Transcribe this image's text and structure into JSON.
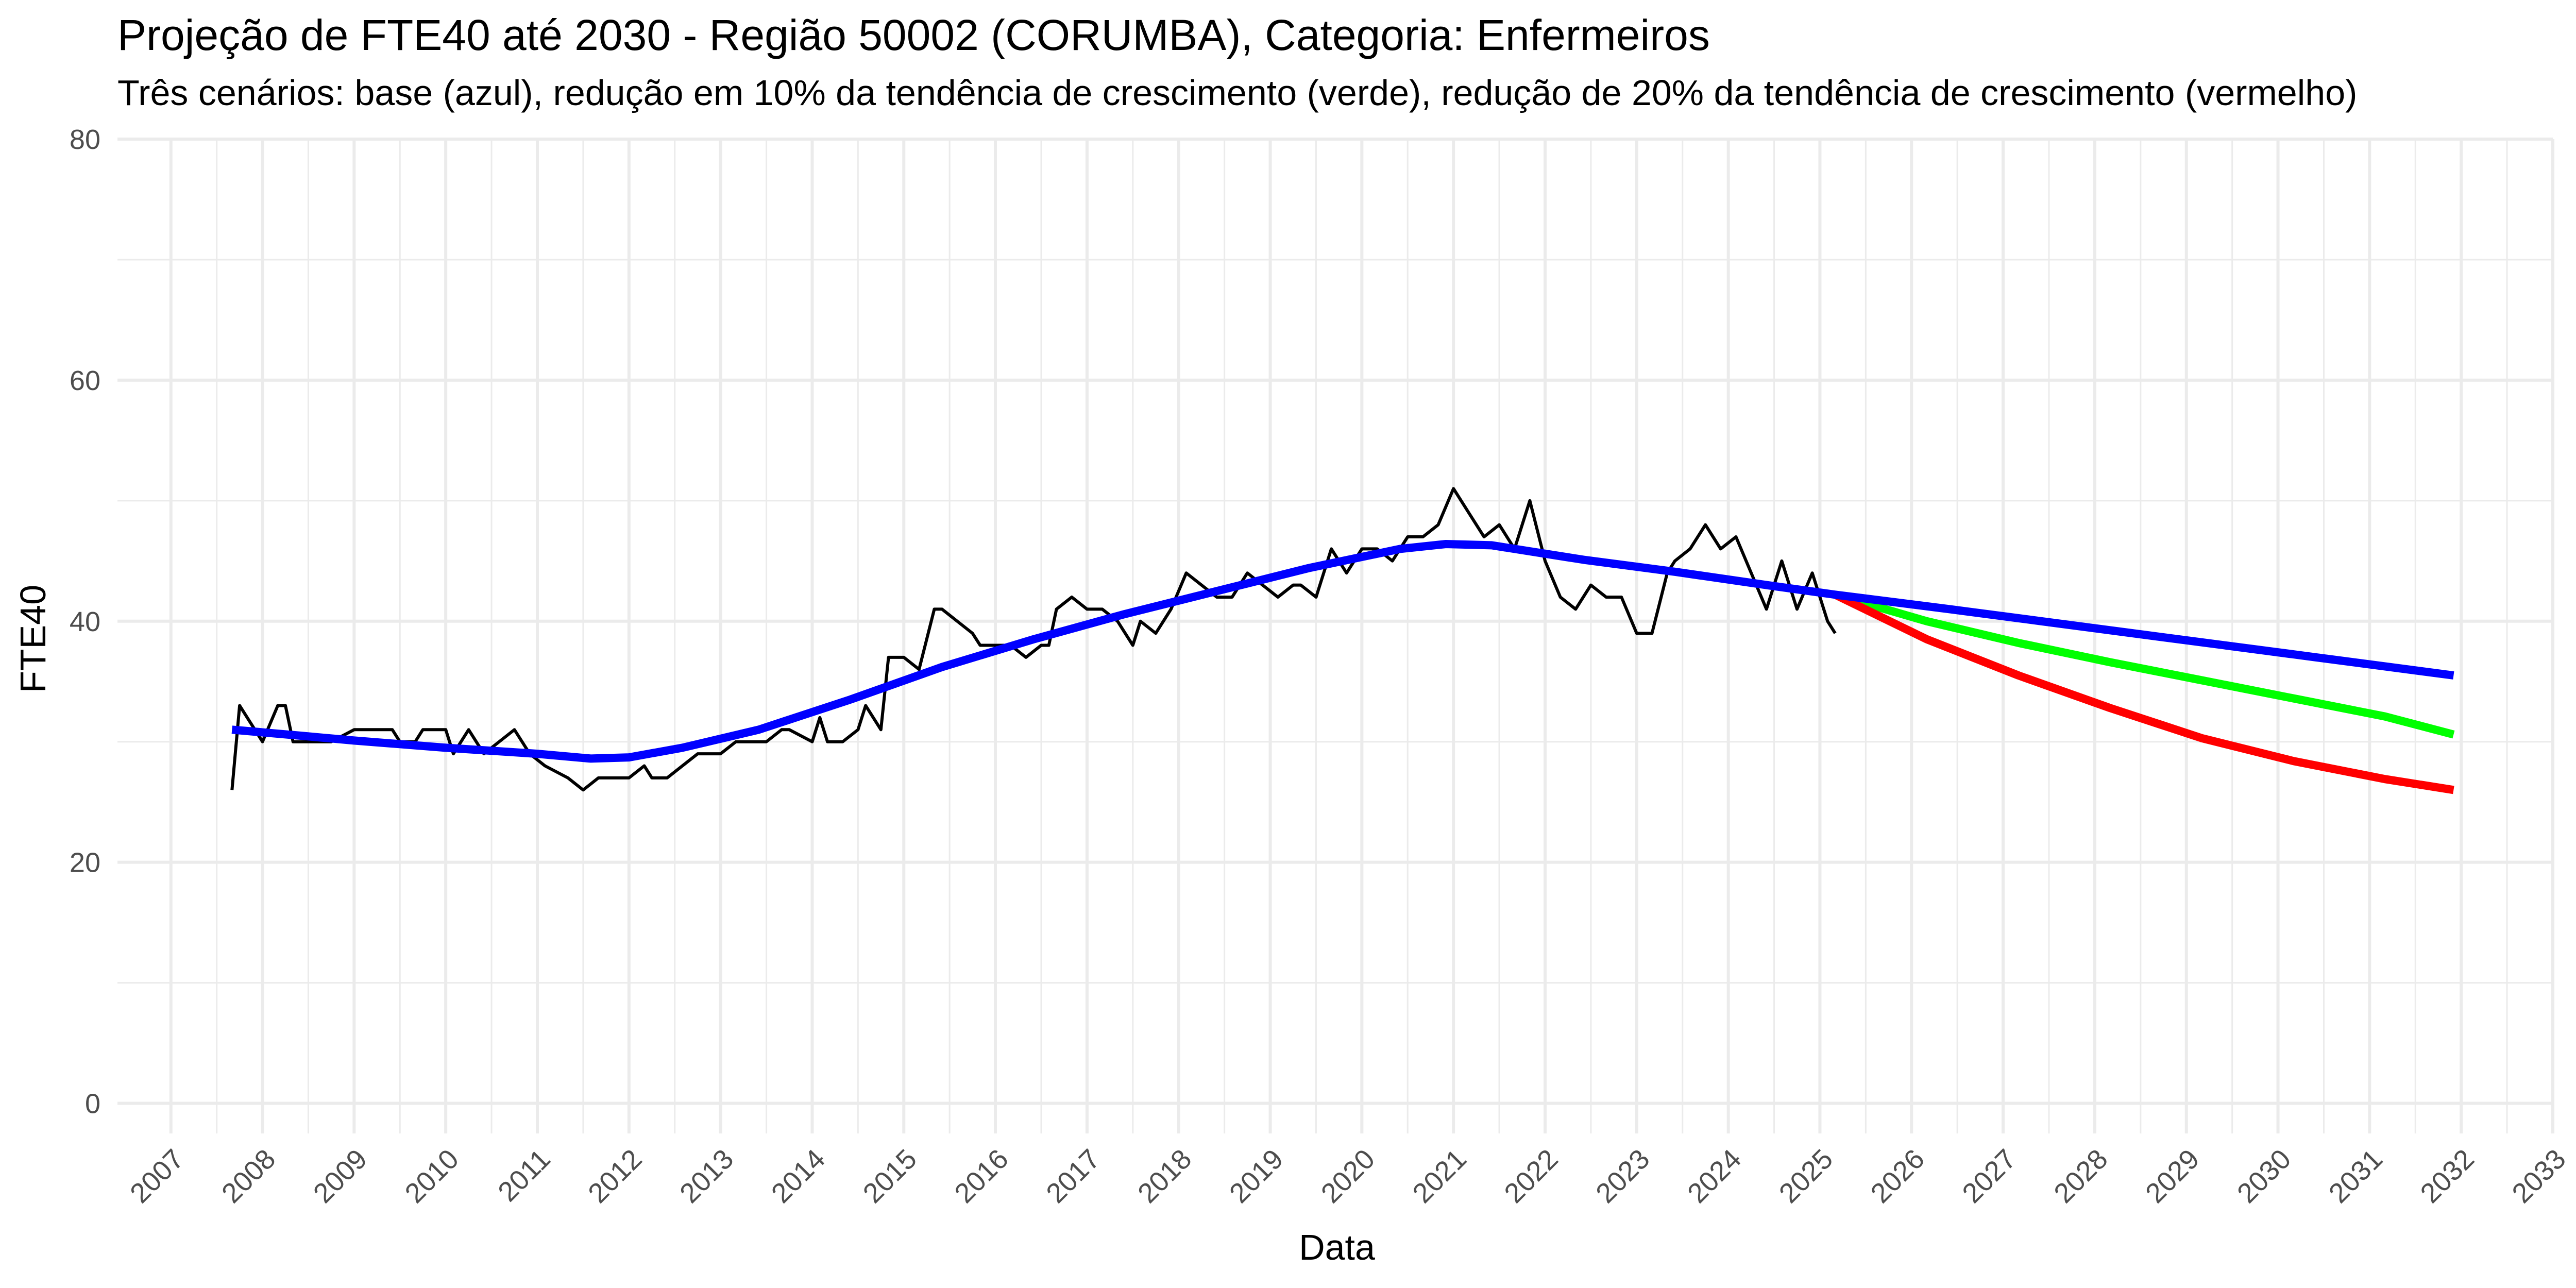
{
  "chart_data": {
    "type": "line",
    "title": "Projeção de FTE40 até 2030 - Região 50002 (CORUMBA), Categoria: Enfermeiros",
    "subtitle": "Três cenários: base (azul), redução em 10% da tendência de crescimento (verde), redução de 20% da tendência de crescimento (vermelho)",
    "xlabel": "Data",
    "ylabel": "FTE40",
    "xlim": [
      "2006-06-01",
      "2033-01-01"
    ],
    "ylim": [
      -2.5,
      80
    ],
    "y_ticks": [
      0,
      20,
      40,
      60,
      80
    ],
    "x_ticks": [
      "2007",
      "2008",
      "2009",
      "2010",
      "2011",
      "2012",
      "2013",
      "2014",
      "2015",
      "2016",
      "2017",
      "2018",
      "2019",
      "2020",
      "2021",
      "2022",
      "2023",
      "2024",
      "2025",
      "2026",
      "2027",
      "2028",
      "2029",
      "2030",
      "2031",
      "2032",
      "2033"
    ],
    "grid": true,
    "colors": {
      "observed": "#000000",
      "base": "#0000ff",
      "green": "#00ff00",
      "red": "#ff0000",
      "grid": "#ebebeb"
    },
    "series": [
      {
        "key": "observed",
        "x": [
          "2007-09-01",
          "2007-10-01",
          "2007-11-01",
          "2008-01-01",
          "2008-03-01",
          "2008-04-01",
          "2008-05-01",
          "2008-07-01",
          "2008-09-01",
          "2008-10-01",
          "2009-01-01",
          "2009-06-01",
          "2009-07-01",
          "2009-09-01",
          "2009-10-01",
          "2010-01-01",
          "2010-02-01",
          "2010-04-01",
          "2010-06-01",
          "2010-08-01",
          "2010-10-01",
          "2010-12-01",
          "2011-02-01",
          "2011-05-01",
          "2011-07-01",
          "2011-09-01",
          "2011-11-01",
          "2012-01-01",
          "2012-03-01",
          "2012-04-01",
          "2012-06-01",
          "2012-08-01",
          "2012-10-01",
          "2013-01-01",
          "2013-03-01",
          "2013-05-01",
          "2013-07-01",
          "2013-09-01",
          "2013-10-01",
          "2014-01-01",
          "2014-02-01",
          "2014-03-01",
          "2014-05-01",
          "2014-07-01",
          "2014-08-01",
          "2014-10-01",
          "2014-11-01",
          "2015-01-01",
          "2015-03-01",
          "2015-05-01",
          "2015-06-01",
          "2015-08-01",
          "2015-10-01",
          "2015-11-01",
          "2016-01-01",
          "2016-03-01",
          "2016-05-01",
          "2016-07-01",
          "2016-08-01",
          "2016-09-01",
          "2016-11-01",
          "2017-01-01",
          "2017-03-01",
          "2017-05-01",
          "2017-07-01",
          "2017-08-01",
          "2017-10-01",
          "2017-12-01",
          "2018-02-01",
          "2018-04-01",
          "2018-06-01",
          "2018-08-01",
          "2018-10-01",
          "2018-12-01",
          "2019-02-01",
          "2019-04-01",
          "2019-05-01",
          "2019-07-01",
          "2019-09-01",
          "2019-11-01",
          "2020-01-01",
          "2020-03-01",
          "2020-05-01",
          "2020-07-01",
          "2020-09-01",
          "2020-11-01",
          "2021-01-01",
          "2021-03-01",
          "2021-05-01",
          "2021-07-01",
          "2021-09-01",
          "2021-11-01",
          "2022-01-01",
          "2022-03-01",
          "2022-05-01",
          "2022-07-01",
          "2022-09-01",
          "2022-11-01",
          "2023-01-01",
          "2023-03-01",
          "2023-05-01",
          "2023-06-01",
          "2023-08-01",
          "2023-10-01",
          "2023-12-01",
          "2024-02-01",
          "2024-04-01",
          "2024-06-01",
          "2024-08-01",
          "2024-10-01",
          "2024-12-01",
          "2025-01-01",
          "2025-02-01",
          "2025-03-01"
        ],
        "y": [
          26,
          33,
          32,
          30,
          33,
          33,
          30,
          30,
          30,
          30,
          31,
          31,
          30,
          30,
          31,
          31,
          29,
          31,
          29,
          30,
          31,
          29,
          28,
          27,
          26,
          27,
          27,
          27,
          28,
          27,
          27,
          28,
          29,
          29,
          30,
          30,
          30,
          31,
          31,
          30,
          32,
          30,
          30,
          31,
          33,
          31,
          37,
          37,
          36,
          41,
          41,
          40,
          39,
          38,
          38,
          38,
          37,
          38,
          38,
          41,
          42,
          41,
          41,
          40,
          38,
          40,
          39,
          41,
          44,
          43,
          42,
          42,
          44,
          43,
          42,
          43,
          43,
          42,
          46,
          44,
          46,
          46,
          45,
          47,
          47,
          48,
          51,
          49,
          47,
          48,
          46,
          50,
          45,
          42,
          41,
          43,
          42,
          42,
          39,
          39,
          44,
          45,
          46,
          48,
          46,
          47,
          44,
          41,
          45,
          41,
          44,
          42,
          40,
          39
        ]
      },
      {
        "key": "base",
        "x": [
          "2007-09-01",
          "2008-06-01",
          "2009-01-01",
          "2010-01-01",
          "2011-01-01",
          "2011-08-01",
          "2012-01-01",
          "2012-08-01",
          "2013-06-01",
          "2014-06-01",
          "2015-06-01",
          "2016-06-01",
          "2017-06-01",
          "2018-06-01",
          "2019-06-01",
          "2020-06-01",
          "2020-12-01",
          "2021-06-01",
          "2022-06-01",
          "2023-06-01",
          "2024-06-01",
          "2025-03-01",
          "2026-06-01",
          "2027-06-01",
          "2028-06-01",
          "2029-06-01",
          "2030-06-01",
          "2031-06-01",
          "2031-12-01"
        ],
        "y": [
          31,
          30.5,
          30.1,
          29.5,
          29,
          28.6,
          28.7,
          29.5,
          31,
          33.5,
          36.2,
          38.5,
          40.6,
          42.5,
          44.4,
          46,
          46.4,
          46.3,
          45.1,
          44.1,
          43,
          42.2,
          41,
          40,
          39,
          38,
          37,
          36,
          35.5
        ]
      },
      {
        "key": "green",
        "x": [
          "2025-03-01",
          "2026-03-01",
          "2027-03-01",
          "2028-03-01",
          "2029-03-01",
          "2030-03-01",
          "2031-03-01",
          "2031-12-01"
        ],
        "y": [
          42.2,
          40,
          38.2,
          36.6,
          35.1,
          33.6,
          32.1,
          30.6
        ]
      },
      {
        "key": "red",
        "x": [
          "2025-03-01",
          "2026-03-01",
          "2027-03-01",
          "2028-03-01",
          "2029-03-01",
          "2030-03-01",
          "2031-03-01",
          "2031-12-01"
        ],
        "y": [
          42.2,
          38.5,
          35.5,
          32.8,
          30.3,
          28.4,
          26.9,
          26
        ]
      }
    ]
  }
}
